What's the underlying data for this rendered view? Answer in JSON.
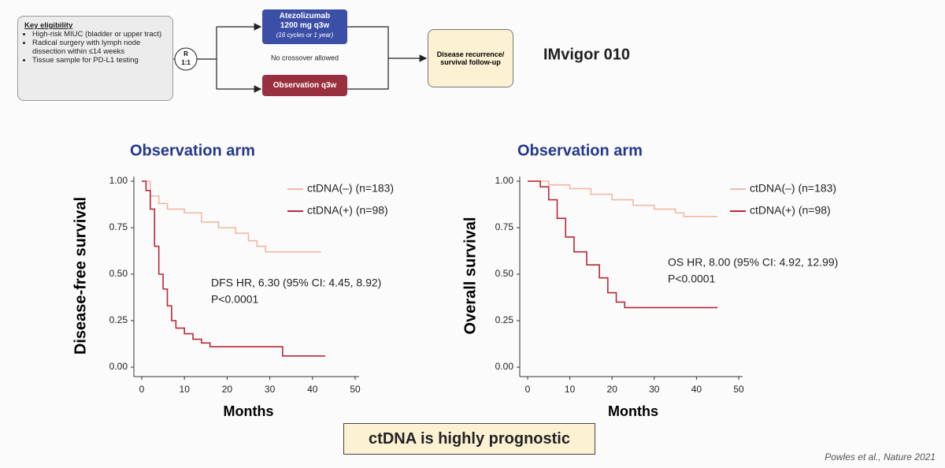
{
  "diagram": {
    "eligibility": {
      "title": "Key eligibility",
      "bullets": [
        "High-risk MIUC (bladder or upper tract)",
        "Radical surgery with lymph node dissection within ≤14 weeks",
        "Tissue sample for PD-L1 testing"
      ]
    },
    "randomization": [
      "R",
      "1:1"
    ],
    "arm_1": {
      "name": "Atezolizumab",
      "dose": "1200 mg q3w",
      "duration": "(16 cycles or 1 year)"
    },
    "note": "No crossover allowed",
    "arm_2": "Observation q3w",
    "outcome": "Disease recurrence/ survival follow-up",
    "trial": "IMvigor 010"
  },
  "chart_data": [
    {
      "type": "line",
      "step": true,
      "title": "Observation arm",
      "x_label": "Months",
      "y_label": "Disease-free survival",
      "xlim": [
        0,
        50
      ],
      "xticks": [
        0,
        10,
        20,
        30,
        40,
        50
      ],
      "ylim": [
        0,
        1
      ],
      "yticks": [
        {
          "value": 0,
          "label": "0.00"
        },
        {
          "value": 0.25,
          "label": "0.25"
        },
        {
          "value": 0.5,
          "label": "0.50"
        },
        {
          "value": 0.75,
          "label": "0.75"
        },
        {
          "value": 1,
          "label": "1.00"
        }
      ],
      "annotations": [
        "DFS HR, 6.30 (95% CI: 4.45, 8.92)",
        "P<0.0001"
      ],
      "series": [
        {
          "name": "ctDNA(–) (n=183)",
          "color": "#f0b9a2",
          "x": [
            0,
            2,
            4,
            6,
            10,
            14,
            18,
            22,
            25,
            27,
            29,
            42
          ],
          "values": [
            1,
            0.92,
            0.88,
            0.85,
            0.83,
            0.78,
            0.75,
            0.72,
            0.68,
            0.65,
            0.62,
            0.62
          ]
        },
        {
          "name": "ctDNA(+) (n=98)",
          "color": "#b8283a",
          "x": [
            0,
            1,
            2,
            3,
            4,
            5,
            6,
            7,
            8,
            10,
            12,
            14,
            16,
            32,
            33,
            43
          ],
          "values": [
            1,
            0.95,
            0.85,
            0.65,
            0.5,
            0.42,
            0.33,
            0.25,
            0.21,
            0.18,
            0.15,
            0.13,
            0.11,
            0.11,
            0.06,
            0.06
          ]
        }
      ]
    },
    {
      "type": "line",
      "step": true,
      "title": "Observation arm",
      "x_label": "Months",
      "y_label": "Overall survival",
      "xlim": [
        0,
        50
      ],
      "xticks": [
        0,
        10,
        20,
        30,
        40,
        50
      ],
      "ylim": [
        0,
        1
      ],
      "yticks": [
        {
          "value": 0,
          "label": "0.00"
        },
        {
          "value": 0.25,
          "label": "0.25"
        },
        {
          "value": 0.5,
          "label": "0.50"
        },
        {
          "value": 0.75,
          "label": "0.75"
        },
        {
          "value": 1,
          "label": "1.00"
        }
      ],
      "annotations": [
        "OS HR, 8.00 (95% CI: 4.92, 12.99)",
        "P<0.0001"
      ],
      "series": [
        {
          "name": "ctDNA(–) (n=183)",
          "color": "#f0b9a2",
          "x": [
            0,
            5,
            10,
            15,
            20,
            25,
            30,
            35,
            37,
            45
          ],
          "values": [
            1,
            0.98,
            0.96,
            0.93,
            0.9,
            0.87,
            0.85,
            0.83,
            0.81,
            0.81
          ]
        },
        {
          "name": "ctDNA(+) (n=98)",
          "color": "#b8283a",
          "x": [
            0,
            3,
            5,
            7,
            9,
            11,
            14,
            17,
            19,
            21,
            23,
            45
          ],
          "values": [
            1,
            0.97,
            0.9,
            0.8,
            0.7,
            0.62,
            0.55,
            0.48,
            0.4,
            0.35,
            0.32,
            0.32
          ]
        }
      ]
    }
  ],
  "conclusion": "ctDNA is highly prognostic",
  "citation": "Powles et al., Nature 2021"
}
